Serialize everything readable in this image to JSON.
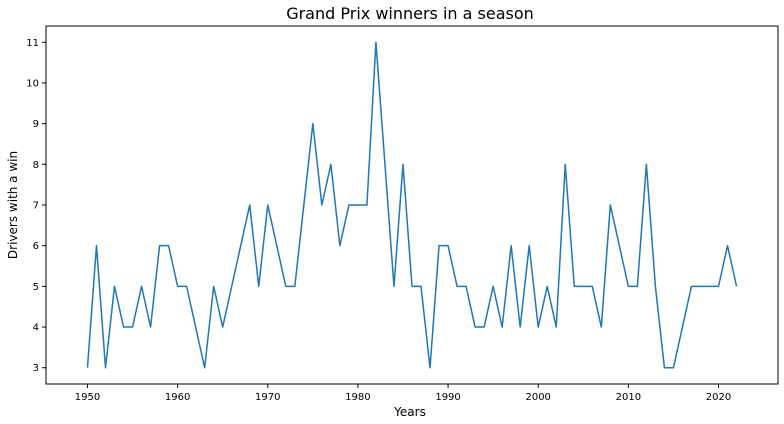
{
  "chart_data": {
    "type": "line",
    "title": "Grand Prix winners in a season",
    "xlabel": "Years",
    "ylabel": "Drivers with a win",
    "xlim": [
      1945.4,
      2026.6
    ],
    "ylim": [
      2.6,
      11.4
    ],
    "x_ticks": [
      1950,
      1960,
      1970,
      1980,
      1990,
      2000,
      2010,
      2020
    ],
    "y_ticks": [
      3,
      4,
      5,
      6,
      7,
      8,
      9,
      10,
      11
    ],
    "grid": false,
    "series": [
      {
        "color": "#1f77b4",
        "x": [
          1950,
          1951,
          1952,
          1953,
          1954,
          1955,
          1956,
          1957,
          1958,
          1959,
          1960,
          1961,
          1962,
          1963,
          1964,
          1965,
          1966,
          1967,
          1968,
          1969,
          1970,
          1971,
          1972,
          1973,
          1974,
          1975,
          1976,
          1977,
          1978,
          1979,
          1980,
          1981,
          1982,
          1983,
          1984,
          1985,
          1986,
          1987,
          1988,
          1989,
          1990,
          1991,
          1992,
          1993,
          1994,
          1995,
          1996,
          1997,
          1998,
          1999,
          2000,
          2001,
          2002,
          2003,
          2004,
          2005,
          2006,
          2007,
          2008,
          2009,
          2010,
          2011,
          2012,
          2013,
          2014,
          2015,
          2016,
          2017,
          2018,
          2019,
          2020,
          2021,
          2022
        ],
        "values": [
          3,
          6,
          3,
          5,
          4,
          4,
          5,
          4,
          6,
          6,
          5,
          5,
          4,
          3,
          5,
          4,
          5,
          6,
          7,
          5,
          7,
          6,
          5,
          5,
          7,
          9,
          7,
          8,
          6,
          7,
          7,
          7,
          11,
          8,
          5,
          8,
          5,
          5,
          3,
          6,
          6,
          5,
          5,
          4,
          4,
          5,
          4,
          6,
          4,
          6,
          4,
          5,
          4,
          8,
          5,
          5,
          5,
          4,
          7,
          6,
          5,
          5,
          8,
          5,
          3,
          3,
          4,
          5,
          5,
          5,
          5,
          6,
          5
        ]
      }
    ]
  }
}
